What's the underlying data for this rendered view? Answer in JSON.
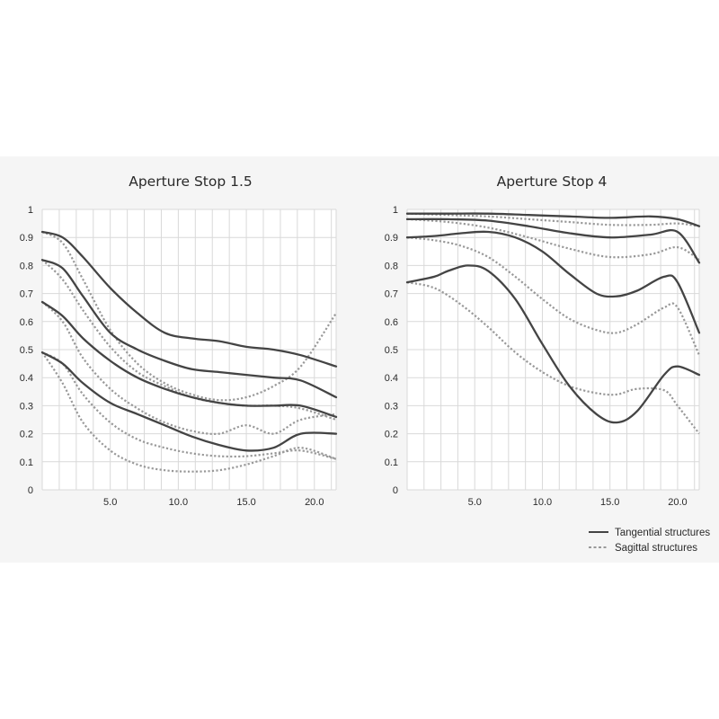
{
  "legend": {
    "tangential": "Tangential structures",
    "sagittal": "Sagittal structures"
  },
  "colors": {
    "panel_background": "#f5f5f5",
    "plot_background": "#ffffff",
    "grid": "#d9d9d9",
    "tangential": "#444444",
    "sagittal": "#999999"
  },
  "chart_data": [
    {
      "type": "line",
      "title": "Aperture Stop 1.5",
      "xlabel": "",
      "ylabel": "",
      "xlim": [
        0,
        21.6
      ],
      "ylim": [
        0,
        1
      ],
      "xticks": [
        "5.0",
        "10.0",
        "15.0",
        "20.0"
      ],
      "yticks": [
        "0",
        "0.1",
        "0.2",
        "0.3",
        "0.4",
        "0.5",
        "0.6",
        "0.7",
        "0.8",
        "0.9",
        "1"
      ],
      "grid": true,
      "series": [
        {
          "style": "tangential",
          "x": [
            0,
            1.5,
            3,
            5,
            7,
            9,
            11,
            13,
            15,
            17,
            19,
            21.6
          ],
          "y": [
            0.92,
            0.9,
            0.83,
            0.72,
            0.63,
            0.56,
            0.54,
            0.53,
            0.51,
            0.5,
            0.48,
            0.44
          ]
        },
        {
          "style": "sagittal",
          "x": [
            0,
            1.5,
            3,
            5,
            7,
            9,
            11,
            13,
            15,
            17,
            19,
            21.6
          ],
          "y": [
            0.92,
            0.88,
            0.75,
            0.57,
            0.45,
            0.38,
            0.34,
            0.32,
            0.33,
            0.37,
            0.44,
            0.63
          ]
        },
        {
          "style": "tangential",
          "x": [
            0,
            1.5,
            3,
            5,
            7,
            9,
            11,
            13,
            15,
            17,
            19,
            21.6
          ],
          "y": [
            0.82,
            0.79,
            0.69,
            0.56,
            0.5,
            0.46,
            0.43,
            0.42,
            0.41,
            0.4,
            0.39,
            0.33
          ]
        },
        {
          "style": "sagittal",
          "x": [
            0,
            1.5,
            3,
            5,
            7,
            9,
            11,
            13,
            15,
            17,
            19,
            21.6
          ],
          "y": [
            0.82,
            0.75,
            0.64,
            0.51,
            0.42,
            0.37,
            0.33,
            0.31,
            0.3,
            0.3,
            0.29,
            0.25
          ]
        },
        {
          "style": "tangential",
          "x": [
            0,
            1.5,
            3,
            5,
            7,
            9,
            11,
            13,
            15,
            17,
            19,
            21.6
          ],
          "y": [
            0.67,
            0.62,
            0.54,
            0.46,
            0.4,
            0.36,
            0.33,
            0.31,
            0.3,
            0.3,
            0.3,
            0.26
          ]
        },
        {
          "style": "sagittal",
          "x": [
            0,
            1.5,
            3,
            5,
            7,
            9,
            11,
            13,
            15,
            17,
            19,
            21.6
          ],
          "y": [
            0.67,
            0.6,
            0.47,
            0.36,
            0.29,
            0.24,
            0.21,
            0.2,
            0.23,
            0.2,
            0.25,
            0.27
          ]
        },
        {
          "style": "tangential",
          "x": [
            0,
            1.5,
            3,
            5,
            7,
            9,
            11,
            13,
            15,
            17,
            19,
            21.6
          ],
          "y": [
            0.49,
            0.45,
            0.38,
            0.31,
            0.27,
            0.23,
            0.19,
            0.16,
            0.14,
            0.15,
            0.2,
            0.2
          ]
        },
        {
          "style": "sagittal",
          "x": [
            0,
            1.5,
            3,
            5,
            7,
            9,
            11,
            13,
            15,
            17,
            19,
            21.6
          ],
          "y": [
            0.49,
            0.45,
            0.34,
            0.24,
            0.18,
            0.15,
            0.13,
            0.12,
            0.12,
            0.13,
            0.14,
            0.11
          ]
        },
        {
          "style": "sagittal",
          "x": [
            0,
            1.5,
            3,
            5,
            7,
            9,
            11,
            13,
            15,
            17,
            19,
            21.6
          ],
          "y": [
            0.49,
            0.38,
            0.24,
            0.14,
            0.09,
            0.07,
            0.065,
            0.07,
            0.09,
            0.12,
            0.15,
            0.11
          ]
        }
      ]
    },
    {
      "type": "line",
      "title": "Aperture Stop 4",
      "xlabel": "",
      "ylabel": "",
      "xlim": [
        0,
        21.6
      ],
      "ylim": [
        0,
        1
      ],
      "xticks": [
        "5.0",
        "10.0",
        "15.0",
        "20.0"
      ],
      "yticks": [
        "0",
        "0.1",
        "0.2",
        "0.3",
        "0.4",
        "0.5",
        "0.6",
        "0.7",
        "0.8",
        "0.9",
        "1"
      ],
      "grid": true,
      "series": [
        {
          "style": "tangential",
          "x": [
            0,
            3,
            6,
            9,
            12,
            15,
            18,
            20,
            21.6
          ],
          "y": [
            0.985,
            0.985,
            0.985,
            0.98,
            0.975,
            0.97,
            0.975,
            0.965,
            0.94
          ]
        },
        {
          "style": "sagittal",
          "x": [
            0,
            3,
            6,
            9,
            12,
            15,
            18,
            20,
            21.6
          ],
          "y": [
            0.985,
            0.98,
            0.975,
            0.965,
            0.955,
            0.945,
            0.945,
            0.95,
            0.94
          ]
        },
        {
          "style": "tangential",
          "x": [
            0,
            3,
            6,
            9,
            12,
            15,
            18,
            20,
            21.6
          ],
          "y": [
            0.965,
            0.965,
            0.96,
            0.94,
            0.915,
            0.9,
            0.91,
            0.92,
            0.81
          ]
        },
        {
          "style": "sagittal",
          "x": [
            0,
            3,
            6,
            9,
            12,
            15,
            18,
            20,
            21.6
          ],
          "y": [
            0.965,
            0.955,
            0.935,
            0.9,
            0.86,
            0.83,
            0.84,
            0.865,
            0.82
          ]
        },
        {
          "style": "tangential",
          "x": [
            0,
            2,
            4,
            6,
            8,
            10,
            12,
            14,
            15.5,
            17,
            19,
            20,
            21.6
          ],
          "y": [
            0.9,
            0.905,
            0.915,
            0.92,
            0.9,
            0.85,
            0.77,
            0.7,
            0.69,
            0.71,
            0.76,
            0.74,
            0.56
          ]
        },
        {
          "style": "sagittal",
          "x": [
            0,
            2,
            4,
            6,
            8,
            10,
            12,
            14,
            15.5,
            17,
            19,
            20,
            21.6
          ],
          "y": [
            0.9,
            0.89,
            0.87,
            0.83,
            0.76,
            0.68,
            0.61,
            0.57,
            0.56,
            0.59,
            0.65,
            0.65,
            0.48
          ]
        },
        {
          "style": "tangential",
          "x": [
            0,
            2,
            3,
            4.5,
            6,
            8,
            10,
            12,
            14,
            15.5,
            17,
            19,
            20,
            21.6
          ],
          "y": [
            0.74,
            0.76,
            0.78,
            0.8,
            0.78,
            0.68,
            0.52,
            0.37,
            0.27,
            0.24,
            0.28,
            0.41,
            0.44,
            0.41
          ]
        },
        {
          "style": "sagittal",
          "x": [
            0,
            2,
            4,
            6,
            8,
            10,
            12,
            14,
            15.5,
            17,
            19,
            20,
            21.6
          ],
          "y": [
            0.74,
            0.72,
            0.66,
            0.58,
            0.49,
            0.42,
            0.37,
            0.345,
            0.34,
            0.36,
            0.355,
            0.3,
            0.2
          ]
        }
      ]
    }
  ]
}
